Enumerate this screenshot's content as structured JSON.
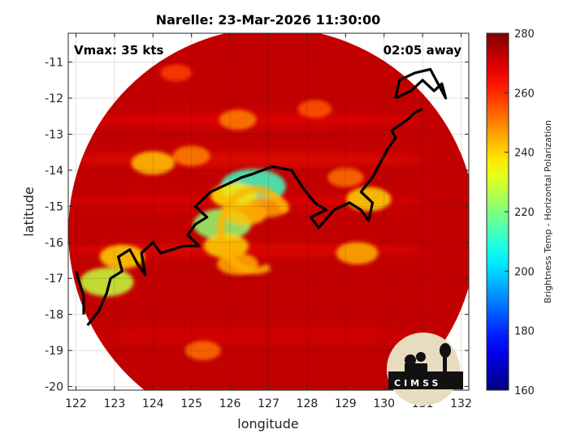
{
  "chart_data": {
    "type": "heatmap",
    "title": "Narelle: 23-Mar-2026 11:30:00",
    "xlabel": "longitude",
    "ylabel": "latitude",
    "xlim": [
      121.8,
      132.2
    ],
    "ylim": [
      -20.1,
      -10.2
    ],
    "x_ticks": [
      "122",
      "123",
      "124",
      "125",
      "126",
      "127",
      "128",
      "129",
      "130",
      "131",
      "132"
    ],
    "y_ticks": [
      "-11",
      "-12",
      "-13",
      "-14",
      "-15",
      "-16",
      "-17",
      "-18",
      "-19",
      "-20"
    ],
    "grid": true,
    "colorbar": {
      "label": "Brightness Temp - Horizontal Polarization",
      "range": [
        160,
        280
      ],
      "ticks": [
        "280",
        "260",
        "240",
        "220",
        "200",
        "180",
        "160"
      ],
      "colormap": "jet"
    },
    "annotations": {
      "vmax": "Vmax: 35 kts",
      "time_away": "02:05 away"
    },
    "swath": {
      "center_lon": 127.1,
      "center_lat": -15.7,
      "radius_deg": 5.3,
      "background_temp": 272
    },
    "storm_center": {
      "lon": 126.6,
      "lat": -15.6
    },
    "features": [
      {
        "lon": 126.6,
        "lat": -14.45,
        "temp": 212
      },
      {
        "lon": 125.8,
        "lat": -15.5,
        "temp": 222
      },
      {
        "lon": 126.1,
        "lat": -14.7,
        "temp": 238
      },
      {
        "lon": 126.4,
        "lat": -15.2,
        "temp": 242
      },
      {
        "lon": 125.9,
        "lat": -16.1,
        "temp": 240
      },
      {
        "lon": 126.2,
        "lat": -16.6,
        "temp": 245
      },
      {
        "lon": 127.0,
        "lat": -15.0,
        "temp": 246
      },
      {
        "lon": 124.0,
        "lat": -13.8,
        "temp": 242
      },
      {
        "lon": 125.0,
        "lat": -13.6,
        "temp": 250
      },
      {
        "lon": 123.2,
        "lat": -16.4,
        "temp": 240
      },
      {
        "lon": 122.8,
        "lat": -17.1,
        "temp": 228
      },
      {
        "lon": 129.6,
        "lat": -14.8,
        "temp": 240
      },
      {
        "lon": 129.3,
        "lat": -16.3,
        "temp": 244
      },
      {
        "lon": 129.0,
        "lat": -14.2,
        "temp": 252
      },
      {
        "lon": 126.2,
        "lat": -12.6,
        "temp": 250
      },
      {
        "lon": 128.2,
        "lat": -12.3,
        "temp": 255
      },
      {
        "lon": 125.3,
        "lat": -19.0,
        "temp": 252
      },
      {
        "lon": 124.6,
        "lat": -11.3,
        "temp": 258
      }
    ],
    "coastline": [
      [
        [
          122.3,
          -18.3
        ],
        [
          122.6,
          -17.9
        ],
        [
          122.8,
          -17.4
        ],
        [
          122.9,
          -17.0
        ],
        [
          123.2,
          -16.8
        ],
        [
          123.1,
          -16.4
        ],
        [
          123.4,
          -16.2
        ],
        [
          123.6,
          -16.6
        ],
        [
          123.8,
          -16.9
        ],
        [
          123.7,
          -16.3
        ],
        [
          124.0,
          -16.0
        ],
        [
          124.2,
          -16.3
        ],
        [
          124.5,
          -16.2
        ],
        [
          124.8,
          -16.1
        ],
        [
          125.2,
          -16.1
        ],
        [
          124.9,
          -15.8
        ],
        [
          125.1,
          -15.5
        ],
        [
          125.4,
          -15.3
        ],
        [
          125.1,
          -15.0
        ],
        [
          125.5,
          -14.6
        ],
        [
          125.9,
          -14.4
        ],
        [
          126.3,
          -14.2
        ],
        [
          126.6,
          -14.1
        ],
        [
          127.1,
          -13.9
        ],
        [
          127.6,
          -14.0
        ],
        [
          127.9,
          -14.5
        ],
        [
          128.2,
          -14.9
        ],
        [
          128.5,
          -15.1
        ],
        [
          128.1,
          -15.3
        ],
        [
          128.3,
          -15.6
        ],
        [
          128.7,
          -15.1
        ],
        [
          129.1,
          -14.9
        ],
        [
          129.4,
          -15.1
        ],
        [
          129.6,
          -15.4
        ],
        [
          129.7,
          -14.9
        ],
        [
          129.4,
          -14.6
        ],
        [
          129.7,
          -14.2
        ],
        [
          129.9,
          -13.8
        ],
        [
          130.1,
          -13.4
        ],
        [
          130.3,
          -13.1
        ],
        [
          130.2,
          -12.9
        ],
        [
          130.6,
          -12.6
        ],
        [
          130.8,
          -12.4
        ],
        [
          131.0,
          -12.3
        ]
      ],
      [
        [
          130.3,
          -12.0
        ],
        [
          130.7,
          -11.8
        ],
        [
          131.0,
          -11.5
        ],
        [
          131.3,
          -11.8
        ],
        [
          131.5,
          -11.6
        ],
        [
          131.6,
          -12.0
        ],
        [
          131.2,
          -11.2
        ],
        [
          130.8,
          -11.3
        ],
        [
          130.4,
          -11.5
        ],
        [
          130.3,
          -12.0
        ]
      ],
      [
        [
          122.0,
          -16.8
        ],
        [
          122.2,
          -17.5
        ],
        [
          122.2,
          -18.0
        ]
      ]
    ]
  }
}
